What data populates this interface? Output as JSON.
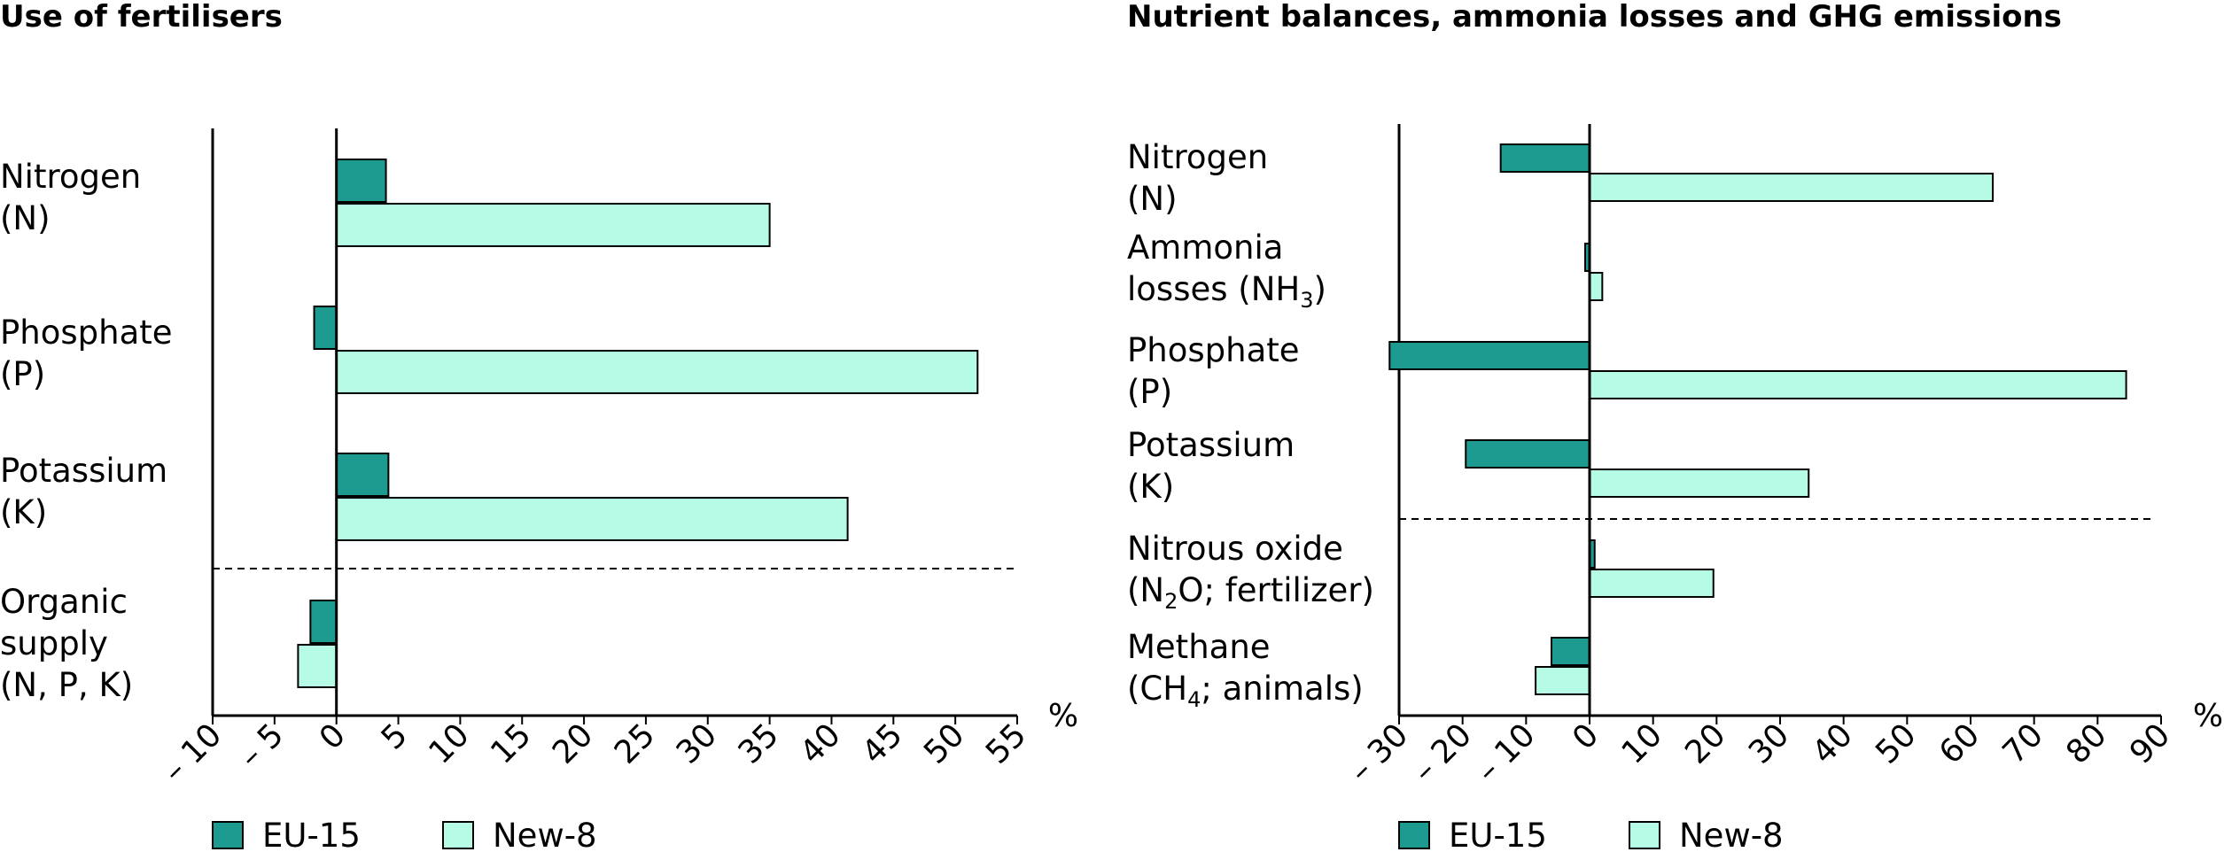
{
  "colors": {
    "eu15": "#1e9b91",
    "new8": "#b5fbe6",
    "outline": "#000000"
  },
  "legend": [
    {
      "label": "EU-15",
      "color": "#1e9b91"
    },
    {
      "label": "New-8",
      "color": "#b5fbe6"
    }
  ],
  "chart_data": [
    {
      "type": "bar",
      "orientation": "horizontal",
      "title": "Use of fertilisers",
      "unit": "%",
      "xlim": [
        -10,
        55
      ],
      "xticks": [
        -10,
        -5,
        0,
        5,
        10,
        15,
        20,
        25,
        30,
        35,
        40,
        45,
        50,
        55
      ],
      "xtick_labels": [
        "– 10",
        "– 5",
        "0",
        "5",
        "10",
        "15",
        "20",
        "25",
        "30",
        "35",
        "40",
        "45",
        "50",
        "55"
      ],
      "grid": false,
      "legend_position": "bottom-left",
      "separator_after_category": 2,
      "categories": [
        {
          "lines": [
            [
              "Nitrogen"
            ],
            [
              "(N)"
            ]
          ]
        },
        {
          "lines": [
            [
              "Phosphate"
            ],
            [
              "(P)"
            ]
          ]
        },
        {
          "lines": [
            [
              "Potassium"
            ],
            [
              "(K)"
            ]
          ]
        },
        {
          "lines": [
            [
              "Organic"
            ],
            [
              "supply"
            ],
            [
              "(N, P, K)"
            ]
          ]
        }
      ],
      "series": [
        {
          "name": "EU-15",
          "values": [
            4,
            -1.8,
            4.2,
            -2.1
          ]
        },
        {
          "name": "New-8",
          "values": [
            35,
            51.8,
            41.3,
            -3.1
          ]
        }
      ]
    },
    {
      "type": "bar",
      "orientation": "horizontal",
      "title": "Nutrient balances, ammonia losses and GHG emissions",
      "unit": "%",
      "xlim": [
        -30,
        90
      ],
      "xticks": [
        -30,
        -20,
        -10,
        0,
        10,
        20,
        30,
        40,
        50,
        60,
        70,
        80,
        90
      ],
      "xtick_labels": [
        "– 30",
        "– 20",
        "– 10",
        "0",
        "10",
        "20",
        "30",
        "40",
        "50",
        "60",
        "70",
        "80",
        "90"
      ],
      "grid": false,
      "legend_position": "bottom-left",
      "separator_after_category": 3,
      "categories": [
        {
          "lines": [
            [
              "Nitrogen"
            ],
            [
              "(N)"
            ]
          ]
        },
        {
          "lines": [
            [
              "Ammonia"
            ],
            [
              "losses (NH",
              "3",
              ")"
            ]
          ]
        },
        {
          "lines": [
            [
              "Phosphate"
            ],
            [
              "(P)"
            ]
          ]
        },
        {
          "lines": [
            [
              "Potassium"
            ],
            [
              "(K)"
            ]
          ]
        },
        {
          "lines": [
            [
              "Nitrous oxide"
            ],
            [
              "(N",
              "2",
              "O; fertilizer)"
            ]
          ]
        },
        {
          "lines": [
            [
              "Methane"
            ],
            [
              "(CH",
              "4",
              "; animals)"
            ]
          ]
        }
      ],
      "series": [
        {
          "name": "EU-15",
          "values": [
            -14,
            -0.7,
            -31.5,
            -19.5,
            0.8,
            -6
          ]
        },
        {
          "name": "New-8",
          "values": [
            63.5,
            2,
            84.5,
            34.5,
            19.5,
            -8.5
          ]
        }
      ]
    }
  ]
}
